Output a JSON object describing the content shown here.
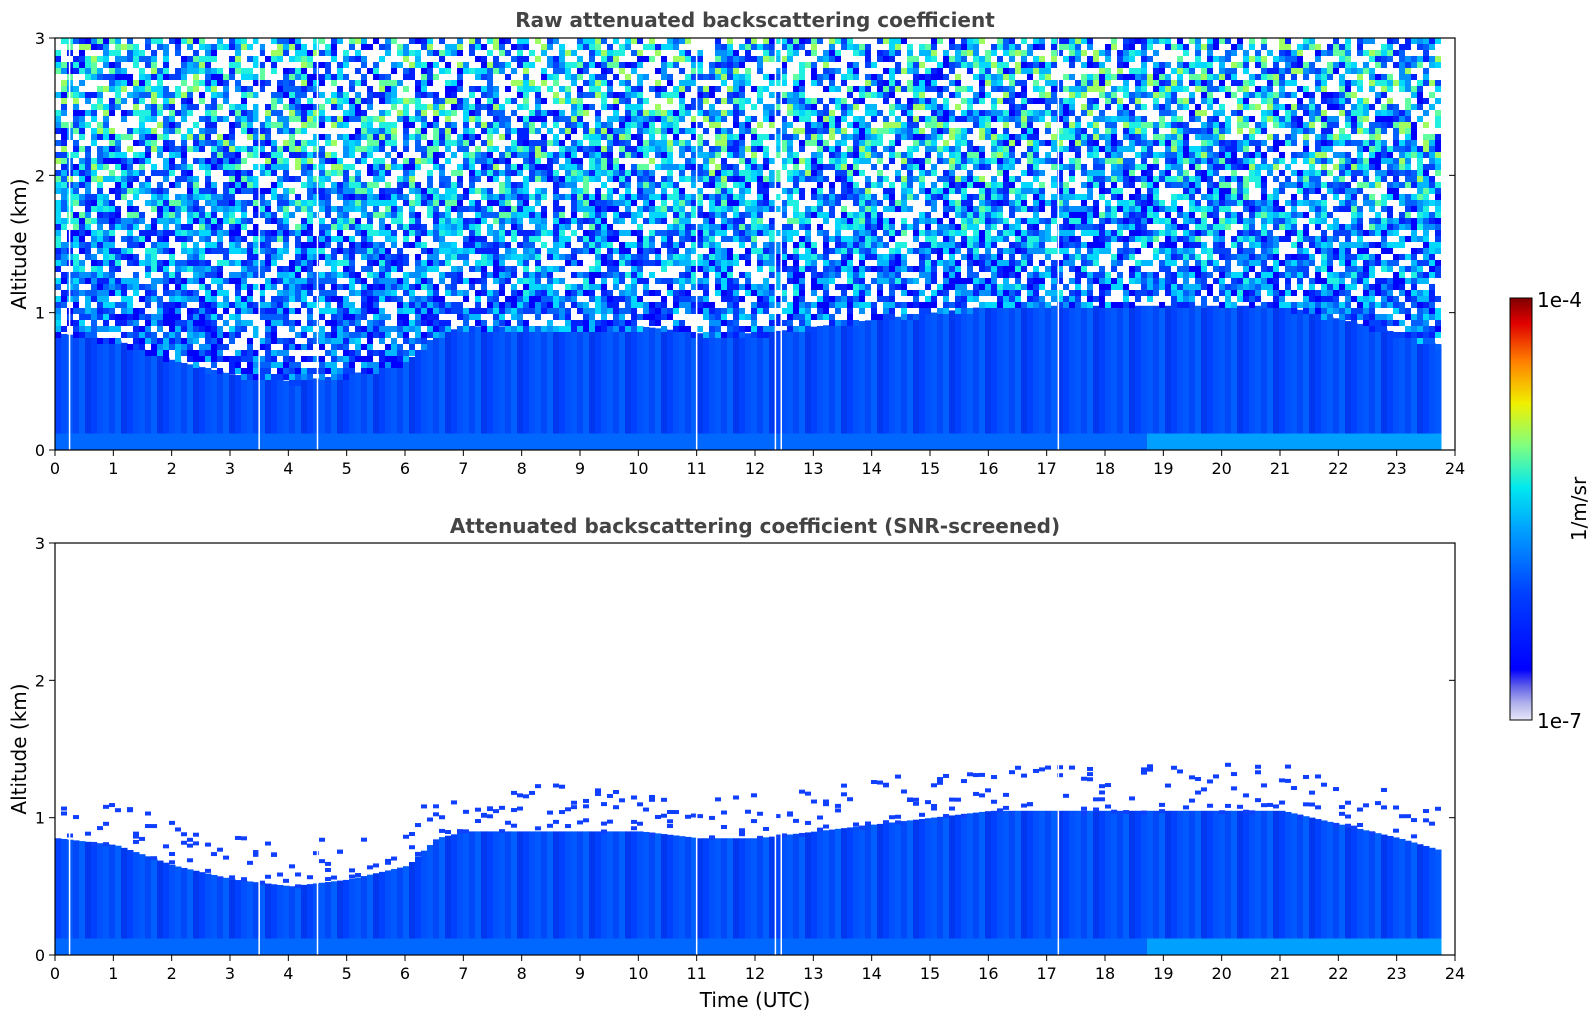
{
  "chart_data": [
    {
      "type": "heatmap",
      "title": "Raw attenuated backscattering coefficient",
      "xlabel": "",
      "ylabel": "Altitude (km)",
      "xlim": [
        0,
        24
      ],
      "ylim": [
        0,
        3
      ],
      "xticks": [
        "0",
        "1",
        "2",
        "3",
        "4",
        "5",
        "6",
        "7",
        "8",
        "9",
        "10",
        "11",
        "12",
        "13",
        "14",
        "15",
        "16",
        "17",
        "18",
        "19",
        "20",
        "21",
        "22",
        "23",
        "24"
      ],
      "yticks": [
        "0",
        "1",
        "2",
        "3"
      ],
      "x_units": "hours UTC",
      "y_units": "km",
      "data_extent_x": [
        0,
        23.8
      ],
      "missing_profiles_x": [
        0.25,
        3.5,
        4.5,
        11.0,
        12.35,
        12.45,
        17.2
      ],
      "boundary_layer_top_km": {
        "x": [
          0,
          1,
          2,
          3,
          4,
          5,
          6,
          6.5,
          7,
          8,
          9,
          10,
          11,
          12,
          13,
          14,
          15,
          16,
          17,
          18,
          19,
          20,
          21,
          22,
          23,
          23.8
        ],
        "y": [
          0.85,
          0.8,
          0.65,
          0.55,
          0.5,
          0.55,
          0.65,
          0.85,
          0.9,
          0.9,
          0.9,
          0.9,
          0.85,
          0.85,
          0.9,
          0.95,
          1.0,
          1.05,
          1.05,
          1.05,
          1.05,
          1.05,
          1.05,
          0.95,
          0.85,
          0.75
        ]
      },
      "noise_level": "high",
      "colorscale": "jet"
    },
    {
      "type": "heatmap",
      "title": "Attenuated backscattering coefficient (SNR-screened)",
      "xlabel": "Time (UTC)",
      "ylabel": "Altitude (km)",
      "xlim": [
        0,
        24
      ],
      "ylim": [
        0,
        3
      ],
      "xticks": [
        "0",
        "1",
        "2",
        "3",
        "4",
        "5",
        "6",
        "7",
        "8",
        "9",
        "10",
        "11",
        "12",
        "13",
        "14",
        "15",
        "16",
        "17",
        "18",
        "19",
        "20",
        "21",
        "22",
        "23",
        "24"
      ],
      "yticks": [
        "0",
        "1",
        "2",
        "3"
      ],
      "x_units": "hours UTC",
      "y_units": "km",
      "data_extent_x": [
        0,
        23.8
      ],
      "missing_profiles_x": [
        0.25,
        3.5,
        4.5,
        11.0,
        12.35,
        12.45,
        17.2
      ],
      "boundary_layer_top_km": {
        "x": [
          0,
          1,
          2,
          3,
          4,
          5,
          6,
          6.5,
          7,
          8,
          9,
          10,
          11,
          12,
          13,
          14,
          15,
          16,
          17,
          18,
          19,
          20,
          21,
          22,
          23,
          23.8
        ],
        "y": [
          0.85,
          0.8,
          0.65,
          0.55,
          0.5,
          0.55,
          0.65,
          0.85,
          0.9,
          0.9,
          0.9,
          0.9,
          0.85,
          0.85,
          0.9,
          0.95,
          1.0,
          1.05,
          1.05,
          1.05,
          1.05,
          1.05,
          1.05,
          0.95,
          0.85,
          0.75
        ]
      },
      "noise_level": "none",
      "colorscale": "jet"
    }
  ],
  "colorbar": {
    "label": "1/m/sr",
    "max_label": "1e-4",
    "min_label": "1e-7",
    "scale": "log",
    "range": [
      1e-07,
      0.0001
    ],
    "colors": [
      "#e8e8f8",
      "#c8c8f0",
      "#a0a0e8",
      "#7070e0",
      "#2020f0",
      "#0000ff",
      "#0020ff",
      "#0050ff",
      "#0080ff",
      "#00b0ff",
      "#00e0ff",
      "#20ffe0",
      "#60ff a0",
      "#a0ff60",
      "#e0ff20",
      "#ffe000",
      "#ffa000",
      "#ff6000",
      "#ff2000",
      "#e00000",
      "#900000"
    ]
  }
}
